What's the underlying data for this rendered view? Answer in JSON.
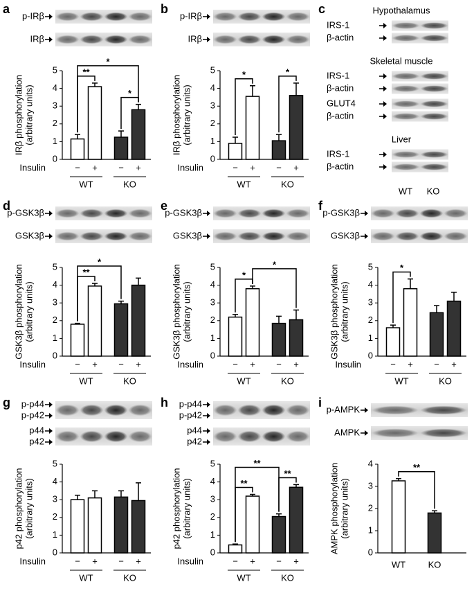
{
  "chart_data": [
    {
      "type": "bar",
      "panel": "a",
      "blot_labels": [
        "p-IRβ",
        "IRβ"
      ],
      "ylabel": [
        "IRβ phosphorylation",
        "(arbitrary units)"
      ],
      "xlabel": "Insulin",
      "categories": [
        "−",
        "+",
        "−",
        "+"
      ],
      "groups": [
        "WT",
        "KO"
      ],
      "values": [
        1.15,
        4.1,
        1.25,
        2.8
      ],
      "errors": [
        0.25,
        0.2,
        0.35,
        0.3
      ],
      "colors": [
        "#ffffff",
        "#ffffff",
        "#333333",
        "#333333"
      ],
      "ylim": [
        0,
        5
      ],
      "yticks": [
        0,
        1,
        2,
        3,
        4,
        5
      ],
      "annotations": [
        {
          "text": "**",
          "pair": [
            0,
            1
          ]
        },
        {
          "text": "*",
          "pair": [
            2,
            3
          ]
        },
        {
          "text": "*",
          "pair": [
            0,
            3
          ]
        }
      ]
    },
    {
      "type": "bar",
      "panel": "b",
      "blot_labels": [
        "p-IRβ",
        "IRβ"
      ],
      "ylabel": [
        "IRβ phosphorylation",
        "(arbitrary units)"
      ],
      "xlabel": "Insulin",
      "categories": [
        "−",
        "+",
        "−",
        "+"
      ],
      "groups": [
        "WT",
        "KO"
      ],
      "values": [
        0.9,
        3.55,
        1.05,
        3.6
      ],
      "errors": [
        0.35,
        0.6,
        0.35,
        0.7
      ],
      "colors": [
        "#ffffff",
        "#ffffff",
        "#333333",
        "#333333"
      ],
      "ylim": [
        0,
        5
      ],
      "yticks": [
        0,
        1,
        2,
        3,
        4,
        5
      ],
      "annotations": [
        {
          "text": "*",
          "pair": [
            0,
            1
          ]
        },
        {
          "text": "*",
          "pair": [
            2,
            3
          ]
        }
      ]
    },
    {
      "type": "bar",
      "panel": "d",
      "blot_labels": [
        "p-GSK3β",
        "GSK3β"
      ],
      "ylabel": [
        "GSK3β phosphorylation",
        "(arbitrary units)"
      ],
      "xlabel": "Insulin",
      "categories": [
        "−",
        "+",
        "−",
        "+"
      ],
      "groups": [
        "WT",
        "KO"
      ],
      "values": [
        1.8,
        3.95,
        2.95,
        4.0
      ],
      "errors": [
        0.05,
        0.15,
        0.15,
        0.4
      ],
      "colors": [
        "#ffffff",
        "#ffffff",
        "#333333",
        "#333333"
      ],
      "ylim": [
        0,
        5
      ],
      "yticks": [
        0,
        1,
        2,
        3,
        4,
        5
      ],
      "annotations": [
        {
          "text": "**",
          "pair": [
            0,
            1
          ]
        },
        {
          "text": "*",
          "pair": [
            0,
            2
          ]
        }
      ]
    },
    {
      "type": "bar",
      "panel": "e",
      "blot_labels": [
        "p-GSK3β",
        "GSK3β"
      ],
      "ylabel": [
        "GSK3β phosphorylation",
        "(arbitrary units)"
      ],
      "xlabel": "Insulin",
      "categories": [
        "−",
        "+",
        "−",
        "+"
      ],
      "groups": [
        "WT",
        "KO"
      ],
      "values": [
        2.2,
        3.8,
        1.85,
        2.05
      ],
      "errors": [
        0.15,
        0.15,
        0.4,
        0.55
      ],
      "colors": [
        "#ffffff",
        "#ffffff",
        "#333333",
        "#333333"
      ],
      "ylim": [
        0,
        5
      ],
      "yticks": [
        0,
        1,
        2,
        3,
        4,
        5
      ],
      "annotations": [
        {
          "text": "*",
          "pair": [
            0,
            1
          ]
        },
        {
          "text": "*",
          "pair": [
            1,
            3
          ]
        }
      ]
    },
    {
      "type": "bar",
      "panel": "f",
      "blot_labels": [
        "p-GSK3β",
        "GSK3β"
      ],
      "ylabel": [
        "GSK3β phosphorylation",
        "(arbitrary units)"
      ],
      "xlabel": "Insulin",
      "categories": [
        "−",
        "+",
        "−",
        "+"
      ],
      "groups": [
        "WT",
        "KO"
      ],
      "values": [
        1.6,
        3.8,
        2.45,
        3.1
      ],
      "errors": [
        0.15,
        0.55,
        0.4,
        0.5
      ],
      "colors": [
        "#ffffff",
        "#ffffff",
        "#333333",
        "#333333"
      ],
      "ylim": [
        0,
        5
      ],
      "yticks": [
        0,
        1,
        2,
        3,
        4,
        5
      ],
      "annotations": [
        {
          "text": "*",
          "pair": [
            0,
            1
          ]
        }
      ]
    },
    {
      "type": "bar",
      "panel": "g",
      "blot_labels": [
        "p-p44",
        "p-p42",
        "p44",
        "p42"
      ],
      "ylabel": [
        "p42 phosphorylation",
        "(arbitrary units)"
      ],
      "xlabel": "Insulin",
      "categories": [
        "−",
        "+",
        "−",
        "+"
      ],
      "groups": [
        "WT",
        "KO"
      ],
      "values": [
        3.0,
        3.1,
        3.15,
        2.95
      ],
      "errors": [
        0.25,
        0.4,
        0.35,
        1.0
      ],
      "colors": [
        "#ffffff",
        "#ffffff",
        "#333333",
        "#333333"
      ],
      "ylim": [
        0,
        5
      ],
      "yticks": [
        0,
        1,
        2,
        3,
        4,
        5
      ]
    },
    {
      "type": "bar",
      "panel": "h",
      "blot_labels": [
        "p-p44",
        "p-p42",
        "p44",
        "p42"
      ],
      "ylabel": [
        "p42 phosphorylation",
        "(arbitrary units)"
      ],
      "xlabel": "Insulin",
      "categories": [
        "−",
        "+",
        "−",
        "+"
      ],
      "groups": [
        "WT",
        "KO"
      ],
      "values": [
        0.45,
        3.2,
        2.05,
        3.7
      ],
      "errors": [
        0.05,
        0.1,
        0.15,
        0.15
      ],
      "colors": [
        "#ffffff",
        "#ffffff",
        "#333333",
        "#333333"
      ],
      "ylim": [
        0,
        5
      ],
      "yticks": [
        0,
        1,
        2,
        3,
        4,
        5
      ],
      "annotations": [
        {
          "text": "**",
          "pair": [
            0,
            1
          ]
        },
        {
          "text": "**",
          "pair": [
            2,
            3
          ]
        },
        {
          "text": "**",
          "pair": [
            0,
            2
          ]
        }
      ]
    },
    {
      "type": "bar",
      "panel": "i",
      "blot_labels": [
        "p-AMPK",
        "AMPK"
      ],
      "ylabel": [
        "AMPK phosphorylation",
        "(arbitrary units)"
      ],
      "categories": [
        "WT",
        "KO"
      ],
      "values": [
        3.25,
        1.8
      ],
      "errors": [
        0.1,
        0.1
      ],
      "colors": [
        "#ffffff",
        "#333333"
      ],
      "ylim": [
        0,
        4
      ],
      "yticks": [
        0,
        1,
        2,
        3,
        4
      ],
      "annotations": [
        {
          "text": "**",
          "pair": [
            0,
            1
          ]
        }
      ]
    }
  ],
  "blot_panel": {
    "panel": "c",
    "sections": [
      {
        "title": "Hypothalamus",
        "labels": [
          "IRS-1",
          "β-actin"
        ]
      },
      {
        "title": "Skeletal muscle",
        "labels": [
          "IRS-1",
          "β-actin",
          "GLUT4",
          "β-actin"
        ]
      },
      {
        "title": "Liver",
        "labels": [
          "IRS-1",
          "β-actin"
        ]
      }
    ],
    "lanes": [
      "WT",
      "KO"
    ]
  }
}
